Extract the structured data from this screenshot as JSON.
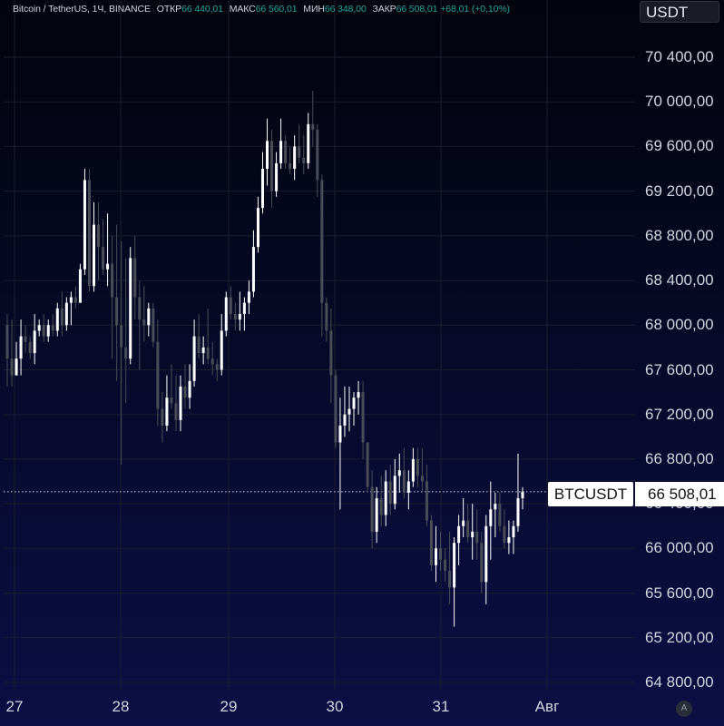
{
  "legend": {
    "title": "Bitcoin / TetherUS, 1Ч, BINANCE",
    "open_label": "ОТКР",
    "open": "66 440,01",
    "high_label": "МАКС",
    "high": "66 560,01",
    "low_label": "МИН",
    "low": "66 348,00",
    "close_label": "ЗАКР",
    "close": "66 508,01",
    "change": "+68,01 (+0,10%)"
  },
  "currency": "USDT",
  "last_price_tag": {
    "symbol": "BTCUSDT",
    "price": "66 508,01"
  },
  "badge": "A",
  "colors": {
    "candle": "#ffffff",
    "candle_fade": "#4a4d57",
    "up_text": "#26a69a"
  },
  "chart_data": {
    "type": "candlestick",
    "title": "Bitcoin / TetherUS, 1Ч, BINANCE",
    "ylim": [
      64700,
      70650
    ],
    "y_ticks": [
      "64 800,00",
      "65 200,00",
      "65 600,00",
      "66 000,00",
      "66 400,00",
      "66 800,00",
      "67 200,00",
      "67 600,00",
      "68 000,00",
      "68 400,00",
      "68 800,00",
      "69 200,00",
      "69 600,00",
      "70 000,00",
      "70 400,00"
    ],
    "x_ticks": [
      "27",
      "28",
      "29",
      "30",
      "31",
      "Авг"
    ],
    "grid": true,
    "last_price": 66508.01,
    "candles": [
      [
        68000,
        68100,
        67450,
        67700
      ],
      [
        67700,
        68050,
        67450,
        67550
      ],
      [
        67550,
        67850,
        67600,
        67700
      ],
      [
        67700,
        68050,
        67550,
        67900
      ],
      [
        67900,
        68000,
        67750,
        67850
      ],
      [
        67850,
        67900,
        67700,
        67750
      ],
      [
        67750,
        68100,
        67650,
        67950
      ],
      [
        67950,
        68050,
        67900,
        68000
      ],
      [
        68000,
        68100,
        67850,
        67900
      ],
      [
        67900,
        68050,
        67850,
        68000
      ],
      [
        68000,
        68100,
        67900,
        67950
      ],
      [
        67950,
        68200,
        67900,
        68150
      ],
      [
        68150,
        68300,
        67900,
        68000
      ],
      [
        68000,
        68250,
        67950,
        68200
      ],
      [
        68200,
        68300,
        68000,
        68250
      ],
      [
        68250,
        68350,
        68150,
        68200
      ],
      [
        68200,
        68550,
        68200,
        68500
      ],
      [
        68500,
        69400,
        68450,
        69300
      ],
      [
        69300,
        69400,
        68300,
        68350
      ],
      [
        68350,
        69100,
        68300,
        68900
      ],
      [
        68900,
        69100,
        68400,
        68700
      ],
      [
        68700,
        68950,
        68450,
        68500
      ],
      [
        68500,
        69000,
        68350,
        68550
      ],
      [
        68550,
        68800,
        67700,
        68250
      ],
      [
        68250,
        68900,
        67500,
        68000
      ],
      [
        68000,
        68750,
        66750,
        67800
      ],
      [
        67800,
        68600,
        67300,
        67700
      ],
      [
        67700,
        68700,
        67650,
        68600
      ],
      [
        68600,
        68800,
        68050,
        68250
      ],
      [
        68250,
        68400,
        67600,
        68050
      ],
      [
        68050,
        68350,
        67850,
        68000
      ],
      [
        68000,
        68200,
        67900,
        68150
      ],
      [
        68150,
        68200,
        67800,
        67850
      ],
      [
        67850,
        68050,
        67100,
        67250
      ],
      [
        67250,
        67400,
        66950,
        67100
      ],
      [
        67100,
        67550,
        67050,
        67350
      ],
      [
        67350,
        67650,
        67250,
        67300
      ],
      [
        67300,
        67550,
        67050,
        67150
      ],
      [
        67150,
        67550,
        67050,
        67450
      ],
      [
        67450,
        67650,
        67250,
        67350
      ],
      [
        67350,
        67650,
        67250,
        67500
      ],
      [
        67500,
        68050,
        67450,
        67900
      ],
      [
        67900,
        68100,
        67700,
        67750
      ],
      [
        67750,
        67900,
        67650,
        67800
      ],
      [
        67800,
        68150,
        67650,
        67700
      ],
      [
        67700,
        67850,
        67550,
        67650
      ],
      [
        67650,
        67700,
        67500,
        67600
      ],
      [
        67600,
        68100,
        67550,
        67950
      ],
      [
        67950,
        68300,
        67900,
        68250
      ],
      [
        68250,
        68350,
        68050,
        68100
      ],
      [
        68100,
        68200,
        67950,
        68050
      ],
      [
        68050,
        68300,
        67950,
        68100
      ],
      [
        68100,
        68250,
        67950,
        68200
      ],
      [
        68200,
        68400,
        68100,
        68300
      ],
      [
        68300,
        68850,
        68250,
        68700
      ],
      [
        68700,
        69150,
        68650,
        69050
      ],
      [
        69050,
        69550,
        69000,
        69400
      ],
      [
        69400,
        69850,
        69250,
        69650
      ],
      [
        69650,
        69750,
        69050,
        69200
      ],
      [
        69200,
        69550,
        69150,
        69450
      ],
      [
        69450,
        69850,
        69400,
        69650
      ],
      [
        69650,
        69700,
        69400,
        69450
      ],
      [
        69450,
        69600,
        69350,
        69400
      ],
      [
        69400,
        69700,
        69300,
        69600
      ],
      [
        69600,
        69800,
        69450,
        69500
      ],
      [
        69500,
        69700,
        69350,
        69450
      ],
      [
        69450,
        69900,
        69400,
        69800
      ],
      [
        69800,
        70100,
        69600,
        69750
      ],
      [
        69750,
        69800,
        69150,
        69300
      ],
      [
        69300,
        69350,
        67900,
        68200
      ],
      [
        68200,
        68250,
        67850,
        67950
      ],
      [
        67950,
        68150,
        67300,
        67550
      ],
      [
        67550,
        67600,
        66900,
        66950
      ],
      [
        66950,
        67350,
        66350,
        67100
      ],
      [
        67100,
        67450,
        67000,
        67200
      ],
      [
        67200,
        67450,
        67050,
        67250
      ],
      [
        67250,
        67400,
        67100,
        67350
      ],
      [
        67350,
        67500,
        67200,
        67400
      ],
      [
        67400,
        67500,
        66800,
        66950
      ],
      [
        66950,
        66950,
        66500,
        66550
      ],
      [
        66550,
        66700,
        66000,
        66150
      ],
      [
        66150,
        66550,
        66050,
        66450
      ],
      [
        66450,
        66650,
        66200,
        66300
      ],
      [
        66300,
        66700,
        66200,
        66600
      ],
      [
        66600,
        66750,
        66300,
        66400
      ],
      [
        66400,
        66800,
        66350,
        66650
      ],
      [
        66650,
        66850,
        66500,
        66700
      ],
      [
        66700,
        66900,
        66450,
        66500
      ],
      [
        66500,
        66700,
        66350,
        66600
      ],
      [
        66600,
        66900,
        66550,
        66800
      ],
      [
        66800,
        66900,
        66550,
        66650
      ],
      [
        66650,
        66900,
        66500,
        66600
      ],
      [
        66600,
        66750,
        66200,
        66250
      ],
      [
        66250,
        66300,
        65800,
        65850
      ],
      [
        65850,
        66200,
        65700,
        66000
      ],
      [
        66000,
        66150,
        65800,
        65900
      ],
      [
        65900,
        66000,
        65700,
        65800
      ],
      [
        65800,
        66150,
        65500,
        65650
      ],
      [
        65650,
        66100,
        65300,
        66050
      ],
      [
        66050,
        66300,
        65850,
        66200
      ],
      [
        66200,
        66450,
        66100,
        66250
      ],
      [
        66250,
        66400,
        66050,
        66100
      ],
      [
        66100,
        66400,
        65900,
        66150
      ],
      [
        66150,
        66350,
        65900,
        66050
      ],
      [
        66050,
        66150,
        65600,
        65700
      ],
      [
        65700,
        66300,
        65500,
        66200
      ],
      [
        66200,
        66600,
        65900,
        66350
      ],
      [
        66350,
        66500,
        66100,
        66400
      ],
      [
        66400,
        66500,
        66150,
        66200
      ],
      [
        66200,
        66350,
        66000,
        66050
      ],
      [
        66050,
        66250,
        65950,
        66100
      ],
      [
        66100,
        66250,
        65950,
        66200
      ],
      [
        66200,
        66850,
        66150,
        66450
      ],
      [
        66450,
        66550,
        66350,
        66508.01
      ]
    ]
  }
}
